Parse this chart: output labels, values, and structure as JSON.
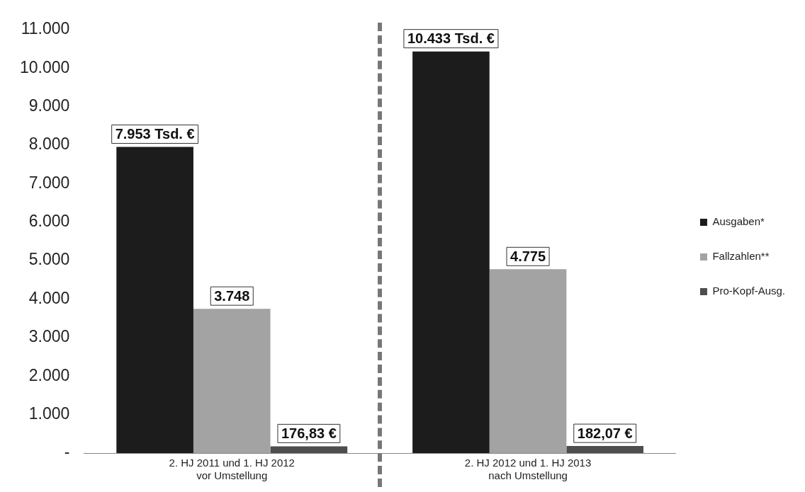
{
  "chart_data": {
    "type": "bar",
    "categories": [
      "2. HJ 2011 und 1. HJ 2012\nvor Umstellung",
      "2. HJ 2012 und 1. HJ 2013\nnach Umstellung"
    ],
    "series": [
      {
        "name": "Ausgaben*",
        "color": "#1c1c1c",
        "values": [
          7953,
          10433
        ],
        "value_labels": [
          "7.953 Tsd. €",
          "10.433 Tsd. €"
        ]
      },
      {
        "name": "Fallzahlen**",
        "color": "#a3a3a3",
        "values": [
          3748,
          4775
        ],
        "value_labels": [
          "3.748",
          "4.775"
        ]
      },
      {
        "name": "Pro-Kopf-Ausg.",
        "color": "#4d4d4d",
        "values": [
          176.83,
          182.07
        ],
        "value_labels": [
          "176,83 €",
          "182,07 €"
        ]
      }
    ],
    "ylim": [
      0,
      11000
    ],
    "yticks": [
      {
        "value": 0,
        "label": "-"
      },
      {
        "value": 1000,
        "label": "1.000"
      },
      {
        "value": 2000,
        "label": "2.000"
      },
      {
        "value": 3000,
        "label": "3.000"
      },
      {
        "value": 4000,
        "label": "4.000"
      },
      {
        "value": 5000,
        "label": "5.000"
      },
      {
        "value": 6000,
        "label": "6.000"
      },
      {
        "value": 7000,
        "label": "7.000"
      },
      {
        "value": 8000,
        "label": "8.000"
      },
      {
        "value": 9000,
        "label": "9.000"
      },
      {
        "value": 10000,
        "label": "10.000"
      },
      {
        "value": 11000,
        "label": "11.000"
      }
    ],
    "grid": false,
    "legend": "right"
  }
}
